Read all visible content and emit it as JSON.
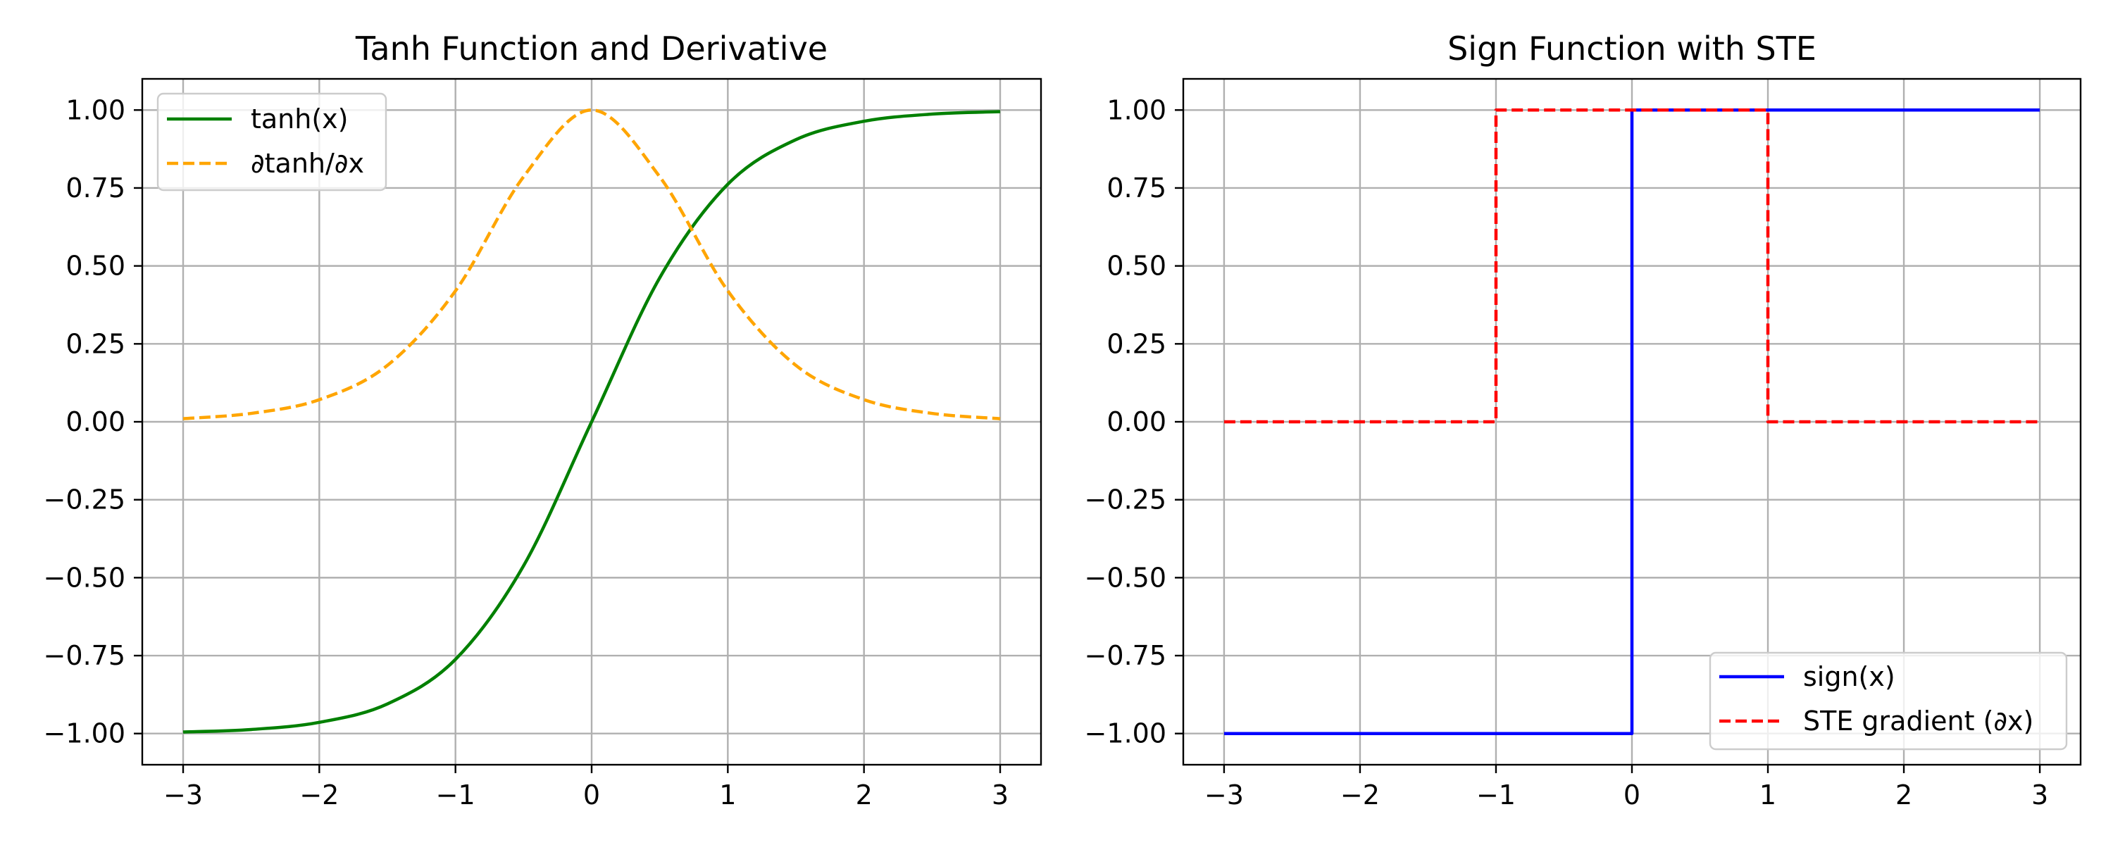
{
  "chart_data": [
    {
      "type": "line",
      "title": "Tanh Function and Derivative",
      "xlabel": "",
      "ylabel": "",
      "xlim": [
        -3.3,
        3.3
      ],
      "ylim": [
        -1.1,
        1.1
      ],
      "xticks": [
        -3,
        -2,
        -1,
        0,
        1,
        2,
        3
      ],
      "xtick_labels": [
        "−3",
        "−2",
        "−1",
        "0",
        "1",
        "2",
        "3"
      ],
      "yticks": [
        1.0,
        0.75,
        0.5,
        0.25,
        0.0,
        -0.25,
        -0.5,
        -0.75,
        -1.0
      ],
      "ytick_labels": [
        "1.00",
        "0.75",
        "0.50",
        "0.25",
        "0.00",
        "−0.25",
        "−0.50",
        "−0.75",
        "−1.00"
      ],
      "grid": true,
      "legend_position": "upper-left",
      "x": [
        -3,
        -2.5,
        -2,
        -1.5,
        -1,
        -0.5,
        0,
        0.5,
        1,
        1.5,
        2,
        2.5,
        3
      ],
      "series": [
        {
          "name": "tanh(x)",
          "color": "#008000",
          "dash": "solid",
          "values": [
            -0.995,
            -0.987,
            -0.964,
            -0.905,
            -0.762,
            -0.462,
            0.0,
            0.462,
            0.762,
            0.905,
            0.964,
            0.987,
            0.995
          ]
        },
        {
          "name": "∂tanh/∂x",
          "color": "#ffa500",
          "dash": "dashed",
          "values": [
            0.01,
            0.027,
            0.071,
            0.181,
            0.42,
            0.786,
            1.0,
            0.786,
            0.42,
            0.181,
            0.071,
            0.027,
            0.01
          ]
        }
      ]
    },
    {
      "type": "line",
      "title": "Sign Function with STE",
      "xlabel": "",
      "ylabel": "",
      "xlim": [
        -3.3,
        3.3
      ],
      "ylim": [
        -1.1,
        1.1
      ],
      "xticks": [
        -3,
        -2,
        -1,
        0,
        1,
        2,
        3
      ],
      "xtick_labels": [
        "−3",
        "−2",
        "−1",
        "0",
        "1",
        "2",
        "3"
      ],
      "yticks": [
        1.0,
        0.75,
        0.5,
        0.25,
        0.0,
        -0.25,
        -0.5,
        -0.75,
        -1.0
      ],
      "ytick_labels": [
        "1.00",
        "0.75",
        "0.50",
        "0.25",
        "0.00",
        "−0.25",
        "−0.50",
        "−0.75",
        "−1.00"
      ],
      "grid": true,
      "legend_position": "lower-right",
      "series": [
        {
          "name": "sign(x)",
          "color": "#0000ff",
          "dash": "solid",
          "x": [
            -3,
            0,
            0,
            3
          ],
          "values": [
            -1,
            -1,
            1,
            1
          ]
        },
        {
          "name": "STE gradient (∂x)",
          "color": "#ff0000",
          "dash": "dashed",
          "x": [
            -3,
            -1,
            -1,
            1,
            1,
            3
          ],
          "values": [
            0,
            0,
            1,
            1,
            0,
            0
          ]
        }
      ]
    }
  ]
}
